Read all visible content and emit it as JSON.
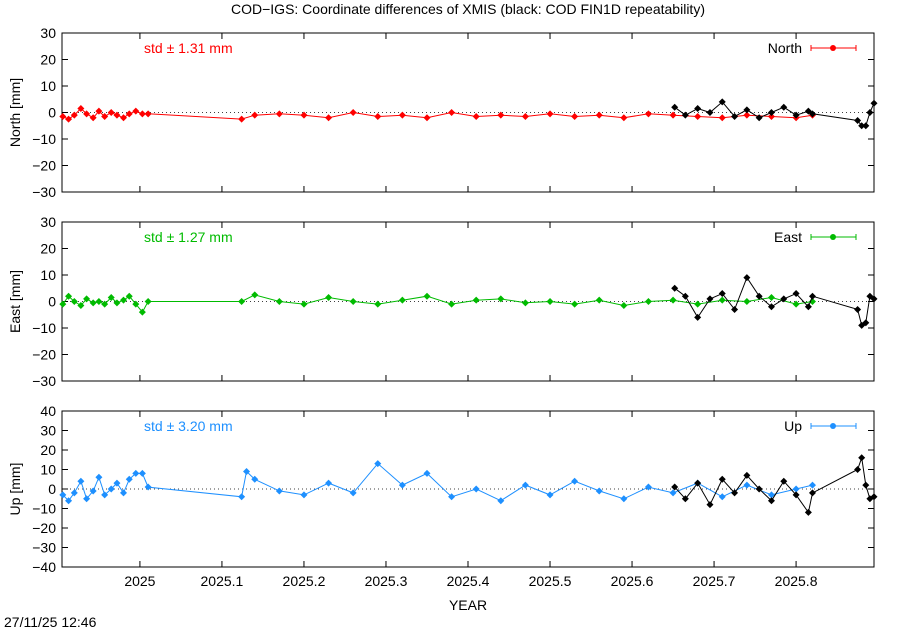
{
  "title": "COD−IGS: Coordinate differences of XMIS (black: COD FIN1D repeatability)",
  "timestamp": "27/11/25 12:46",
  "xlabel": "YEAR",
  "colors": {
    "north": "#ff0000",
    "east": "#00bb00",
    "up": "#1e90ff",
    "repeat": "#000000"
  },
  "chart_data": [
    {
      "type": "line",
      "panel": "north",
      "ylabel": "North [mm]",
      "xlim": [
        2024.905,
        2025.895
      ],
      "ylim": [
        -30,
        30
      ],
      "xticks": [
        2025,
        2025.1,
        2025.2,
        2025.3,
        2025.4,
        2025.5,
        2025.6,
        2025.7,
        2025.8
      ],
      "xtick_labels": [
        "2025",
        "2025.1",
        "2025.2",
        "2025.3",
        "2025.4",
        "2025.5",
        "2025.6",
        "2025.7",
        "2025.8"
      ],
      "yticks": [
        -30,
        -20,
        -10,
        0,
        10,
        20,
        30
      ],
      "ytick_labels": [
        "−30",
        "−20",
        "−10",
        "0",
        "10",
        "20",
        "30"
      ],
      "std_label": "std ± 1.31 mm",
      "legend": "North",
      "series": [
        {
          "name": "North",
          "x": [
            2024.906,
            2024.913,
            2024.92,
            2024.928,
            2024.935,
            2024.943,
            2024.95,
            2024.957,
            2024.965,
            2024.972,
            2024.98,
            2024.987,
            2024.995,
            2025.003,
            2025.01,
            2025.124,
            2025.14,
            2025.17,
            2025.2,
            2025.23,
            2025.26,
            2025.29,
            2025.32,
            2025.35,
            2025.38,
            2025.41,
            2025.44,
            2025.47,
            2025.5,
            2025.53,
            2025.56,
            2025.59,
            2025.62,
            2025.65,
            2025.68,
            2025.71,
            2025.74,
            2025.77,
            2025.8,
            2025.82
          ],
          "y": [
            -1.5,
            -2.5,
            -1,
            1.5,
            -0.5,
            -2,
            0.5,
            -1.5,
            0,
            -1,
            -2,
            -0.5,
            0.5,
            -0.5,
            -0.5,
            -2.5,
            -1,
            -0.5,
            -1,
            -2,
            0,
            -1.5,
            -1,
            -2,
            0,
            -1.5,
            -1,
            -1.5,
            -0.5,
            -1.5,
            -1,
            -2,
            -0.5,
            -1,
            -1.5,
            -2,
            -1,
            -1.5,
            -2,
            -1
          ]
        },
        {
          "name": "COD FIN1D repeatability",
          "x": [
            2025.652,
            2025.665,
            2025.68,
            2025.695,
            2025.71,
            2025.725,
            2025.74,
            2025.755,
            2025.77,
            2025.785,
            2025.8,
            2025.815,
            2025.82,
            2025.875,
            2025.88,
            2025.885,
            2025.89,
            2025.895
          ],
          "y": [
            2,
            -1,
            1.5,
            0,
            4,
            -1.5,
            1,
            -2,
            0,
            2,
            -1,
            0.5,
            -0.5,
            -3,
            -5,
            -5,
            0,
            3.5
          ]
        }
      ]
    },
    {
      "type": "line",
      "panel": "east",
      "ylabel": "East [mm]",
      "xlim": [
        2024.905,
        2025.895
      ],
      "ylim": [
        -30,
        30
      ],
      "xticks": [
        2025,
        2025.1,
        2025.2,
        2025.3,
        2025.4,
        2025.5,
        2025.6,
        2025.7,
        2025.8
      ],
      "xtick_labels": [
        "2025",
        "2025.1",
        "2025.2",
        "2025.3",
        "2025.4",
        "2025.5",
        "2025.6",
        "2025.7",
        "2025.8"
      ],
      "yticks": [
        -30,
        -20,
        -10,
        0,
        10,
        20,
        30
      ],
      "ytick_labels": [
        "−30",
        "−20",
        "−10",
        "0",
        "10",
        "20",
        "30"
      ],
      "std_label": "std ± 1.27 mm",
      "legend": "East",
      "series": [
        {
          "name": "East",
          "x": [
            2024.906,
            2024.913,
            2024.92,
            2024.928,
            2024.935,
            2024.943,
            2024.95,
            2024.957,
            2024.965,
            2024.972,
            2024.98,
            2024.987,
            2024.995,
            2025.003,
            2025.01,
            2025.124,
            2025.14,
            2025.17,
            2025.2,
            2025.23,
            2025.26,
            2025.29,
            2025.32,
            2025.35,
            2025.38,
            2025.41,
            2025.44,
            2025.47,
            2025.5,
            2025.53,
            2025.56,
            2025.59,
            2025.62,
            2025.65,
            2025.68,
            2025.71,
            2025.74,
            2025.77,
            2025.8,
            2025.82
          ],
          "y": [
            -1,
            2,
            0,
            -1.5,
            1,
            -0.5,
            0,
            -1,
            1.5,
            -0.5,
            0.5,
            2,
            -1,
            -4,
            0,
            0,
            2.5,
            0,
            -1,
            1.5,
            0,
            -1,
            0.5,
            2,
            -1,
            0.5,
            1,
            -0.5,
            0,
            -1,
            0.5,
            -1.5,
            0,
            0.5,
            -1,
            0.5,
            0,
            1.5,
            -1,
            0
          ]
        },
        {
          "name": "COD FIN1D repeatability",
          "x": [
            2025.652,
            2025.665,
            2025.68,
            2025.695,
            2025.71,
            2025.725,
            2025.74,
            2025.755,
            2025.77,
            2025.785,
            2025.8,
            2025.815,
            2025.82,
            2025.875,
            2025.88,
            2025.885,
            2025.89,
            2025.895
          ],
          "y": [
            5,
            2,
            -6,
            1,
            3,
            -3,
            9,
            2,
            -2,
            1,
            3,
            -2,
            2,
            -3,
            -9,
            -8,
            2,
            1
          ]
        }
      ]
    },
    {
      "type": "line",
      "panel": "up",
      "ylabel": "Up [mm]",
      "xlabel": "YEAR",
      "xlim": [
        2024.905,
        2025.895
      ],
      "ylim": [
        -40,
        40
      ],
      "xticks": [
        2025,
        2025.1,
        2025.2,
        2025.3,
        2025.4,
        2025.5,
        2025.6,
        2025.7,
        2025.8
      ],
      "xtick_labels": [
        "2025",
        "2025.1",
        "2025.2",
        "2025.3",
        "2025.4",
        "2025.5",
        "2025.6",
        "2025.7",
        "2025.8"
      ],
      "yticks": [
        -40,
        -30,
        -20,
        -10,
        0,
        10,
        20,
        30,
        40
      ],
      "ytick_labels": [
        "−40",
        "−30",
        "−20",
        "−10",
        "0",
        "10",
        "20",
        "30",
        "40"
      ],
      "std_label": "std ± 3.20 mm",
      "legend": "Up",
      "series": [
        {
          "name": "Up",
          "x": [
            2024.906,
            2024.913,
            2024.92,
            2024.928,
            2024.935,
            2024.943,
            2024.95,
            2024.957,
            2024.965,
            2024.972,
            2024.98,
            2024.987,
            2024.995,
            2025.003,
            2025.01,
            2025.124,
            2025.13,
            2025.14,
            2025.17,
            2025.2,
            2025.23,
            2025.26,
            2025.29,
            2025.32,
            2025.35,
            2025.38,
            2025.41,
            2025.44,
            2025.47,
            2025.5,
            2025.53,
            2025.56,
            2025.59,
            2025.62,
            2025.65,
            2025.68,
            2025.71,
            2025.74,
            2025.77,
            2025.8,
            2025.82
          ],
          "y": [
            -3,
            -6,
            -2,
            4,
            -5,
            -1,
            6,
            -3,
            0,
            3,
            -2,
            5,
            8,
            8,
            1,
            -4,
            9,
            5,
            -1,
            -3,
            3,
            -2,
            13,
            2,
            8,
            -4,
            0,
            -6,
            2,
            -3,
            4,
            -1,
            -5,
            1,
            -2,
            3,
            -4,
            2,
            -3,
            0,
            2
          ]
        },
        {
          "name": "COD FIN1D repeatability",
          "x": [
            2025.652,
            2025.665,
            2025.68,
            2025.695,
            2025.71,
            2025.725,
            2025.74,
            2025.755,
            2025.77,
            2025.785,
            2025.8,
            2025.815,
            2025.82,
            2025.875,
            2025.88,
            2025.885,
            2025.89,
            2025.895
          ],
          "y": [
            1,
            -5,
            3,
            -8,
            5,
            -2,
            7,
            0,
            -6,
            4,
            -3,
            -12,
            -2,
            10,
            16,
            2,
            -5,
            -4
          ]
        }
      ]
    }
  ]
}
